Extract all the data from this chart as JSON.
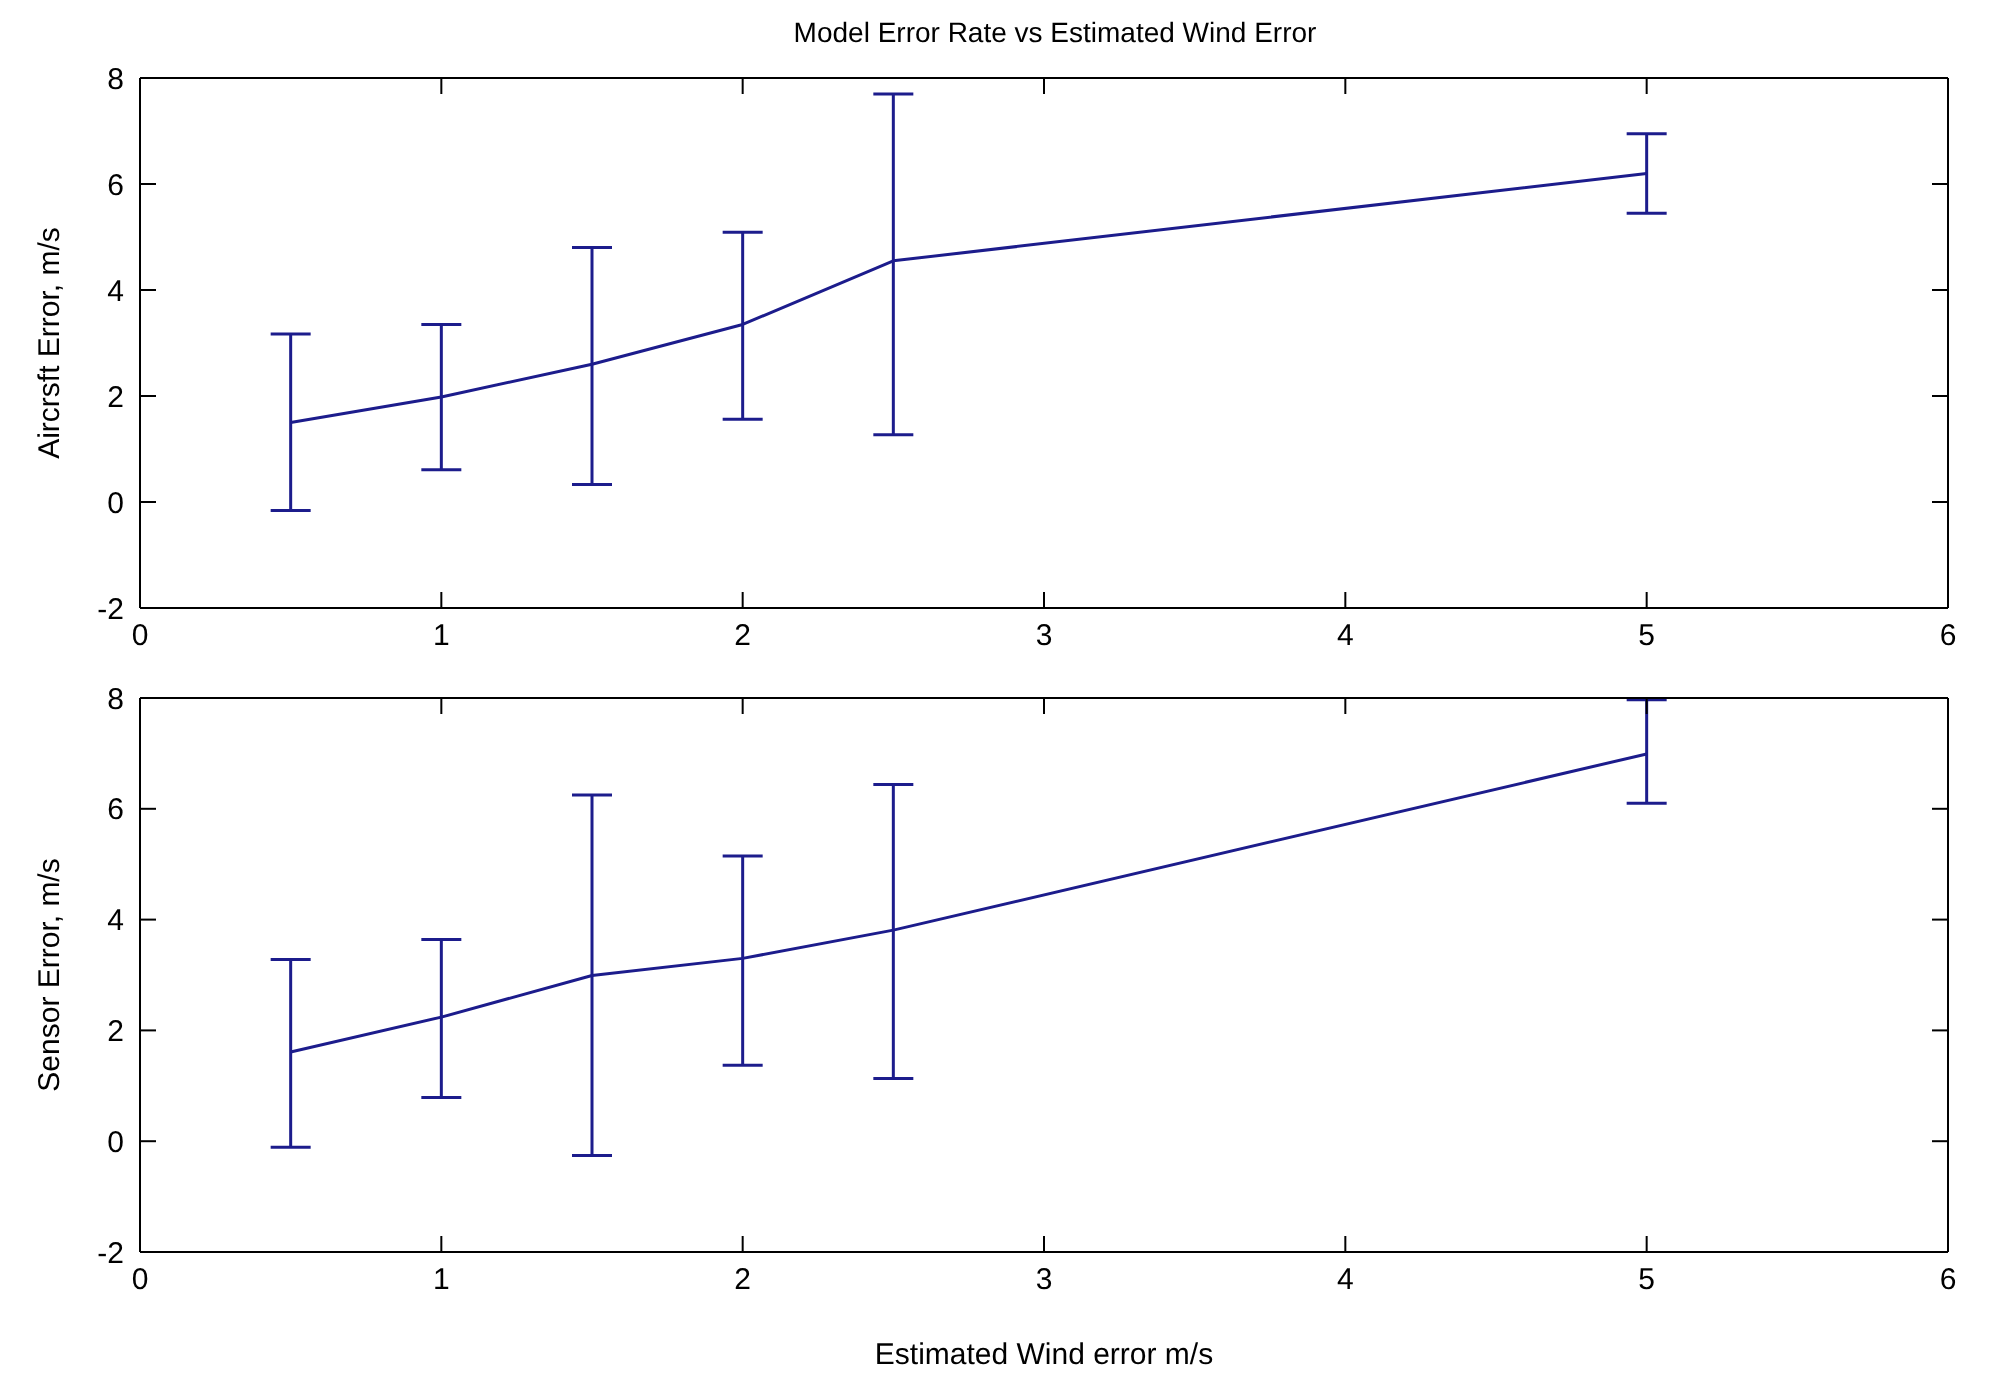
{
  "chart_data": [
    {
      "type": "line",
      "title": "Model Error Rate vs Estimated Wind Error",
      "ylabel": "Aircrsft Error, m/s",
      "x": [
        0.5,
        1,
        1.5,
        2,
        2.5,
        5
      ],
      "series": [
        {
          "color": "#1c1c8c",
          "values": [
            1.5,
            1.98,
            2.6,
            3.35,
            4.55,
            6.2
          ],
          "errors": [
            [
              -0.16,
              3.17
            ],
            [
              0.61,
              3.35
            ],
            [
              0.33,
              4.8
            ],
            [
              1.56,
              5.09
            ],
            [
              1.27,
              7.7
            ],
            [
              5.45,
              6.95
            ]
          ]
        }
      ],
      "xlim": [
        0,
        6
      ],
      "xticks": [
        0,
        1,
        2,
        3,
        4,
        5,
        6
      ],
      "ylim": [
        -2,
        8
      ],
      "yticks": [
        -2,
        0,
        2,
        4,
        6,
        8
      ],
      "grid": false,
      "marker": "none",
      "line_style": "solid"
    },
    {
      "type": "line",
      "xlabel": "Estimated Wind error m/s",
      "ylabel": "Sensor Error, m/s",
      "x": [
        0.5,
        1,
        1.5,
        2,
        2.5,
        5
      ],
      "series": [
        {
          "color": "#1c1c8c",
          "values": [
            1.61,
            2.24,
            2.99,
            3.3,
            3.81,
            6.99
          ],
          "errors": [
            [
              -0.11,
              3.28
            ],
            [
              0.79,
              3.64
            ],
            [
              -0.26,
              6.25
            ],
            [
              1.37,
              5.15
            ],
            [
              1.13,
              6.44
            ],
            [
              6.1,
              7.97
            ]
          ]
        }
      ],
      "xlim": [
        0,
        6
      ],
      "xticks": [
        0,
        1,
        2,
        3,
        4,
        5,
        6
      ],
      "ylim": [
        -2,
        8
      ],
      "yticks": [
        -2,
        0,
        2,
        4,
        6,
        8
      ],
      "grid": false,
      "marker": "none",
      "line_style": "solid"
    }
  ]
}
